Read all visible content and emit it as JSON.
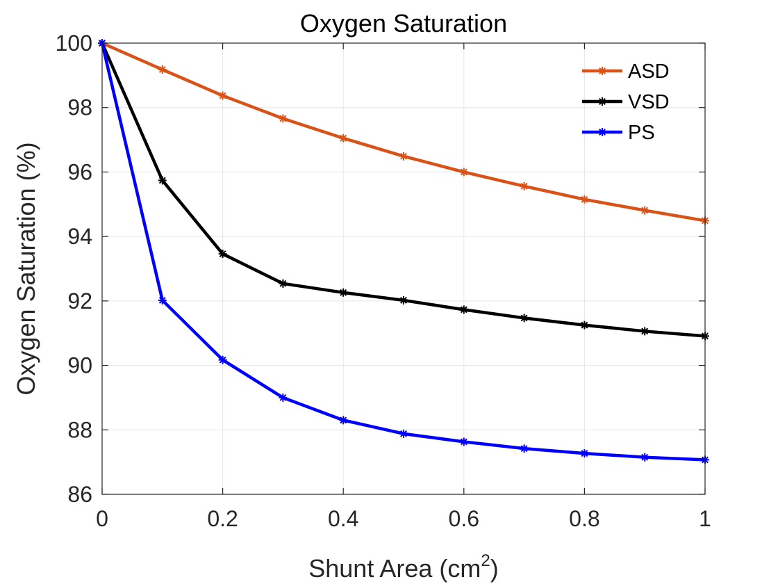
{
  "chart_data": {
    "type": "line",
    "title": "Oxygen Saturation",
    "xlabel_main": "Shunt Area (cm",
    "xlabel_sup": "2",
    "xlabel_end": ")",
    "ylabel": "Oxygen Saturation (%)",
    "x": [
      0,
      0.1,
      0.2,
      0.3,
      0.4,
      0.5,
      0.6,
      0.7,
      0.8,
      0.9,
      1
    ],
    "xlim": [
      0,
      1
    ],
    "ylim": [
      86,
      100
    ],
    "xticks": [
      "0",
      "0.2",
      "0.4",
      "0.6",
      "0.8",
      "1"
    ],
    "yticks": [
      "86",
      "88",
      "90",
      "92",
      "94",
      "96",
      "98",
      "100"
    ],
    "grid": true,
    "legend_position": "top-right",
    "series": [
      {
        "name": "ASD",
        "color": "#d95319",
        "values": [
          100,
          99.18,
          98.37,
          97.66,
          97.05,
          96.49,
          96.0,
          95.56,
          95.15,
          94.81,
          94.49
        ]
      },
      {
        "name": "VSD",
        "color": "#000000",
        "values": [
          100,
          95.74,
          93.46,
          92.54,
          92.26,
          92.02,
          91.73,
          91.47,
          91.25,
          91.06,
          90.91
        ]
      },
      {
        "name": "PS",
        "color": "#0000ff",
        "values": [
          100,
          92.02,
          90.17,
          89.0,
          88.3,
          87.88,
          87.63,
          87.42,
          87.27,
          87.15,
          87.07
        ]
      }
    ]
  }
}
